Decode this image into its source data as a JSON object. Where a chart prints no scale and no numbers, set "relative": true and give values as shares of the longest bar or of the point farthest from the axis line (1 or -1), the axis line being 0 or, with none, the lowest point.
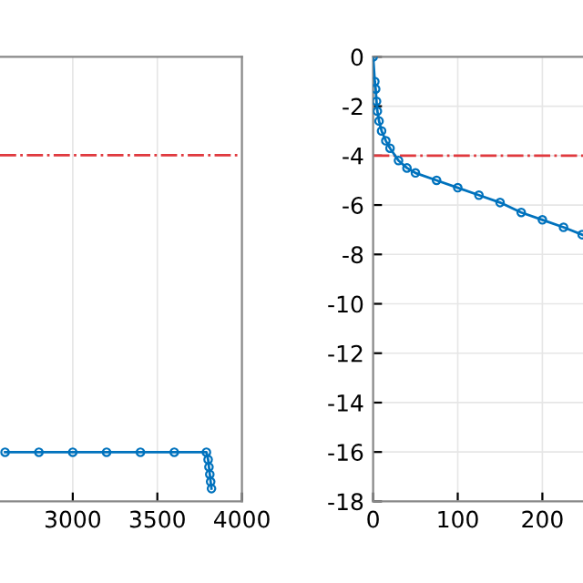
{
  "chart_data": [
    {
      "type": "line",
      "relative": true,
      "tick_labels": "x",
      "grid": "x",
      "marker": "circle",
      "xlim": [
        2570,
        4000
      ],
      "xticks": [
        3000,
        3500,
        4000
      ],
      "ref_lines": [
        {
          "axis": "y",
          "value": 7.04,
          "color": "#e0393e",
          "line_style": "dashdot"
        }
      ],
      "series": [
        {
          "color": "#0072bd",
          "x": [
            2600,
            2800,
            3000,
            3200,
            3400,
            3600,
            3790,
            3800,
            3805,
            3810,
            3815,
            3820
          ],
          "values": [
            1,
            1,
            1,
            1,
            1,
            1,
            1,
            0.85,
            0.7,
            0.55,
            0.4,
            0.26
          ]
        }
      ]
    },
    {
      "type": "line",
      "grid": true,
      "marker": "circle",
      "xlim": [
        0,
        248
      ],
      "xticks": [
        0,
        100,
        200
      ],
      "ylim": [
        -18,
        0
      ],
      "yticks": [
        -18,
        -16,
        -14,
        -12,
        -10,
        -8,
        -6,
        -4,
        -2,
        0
      ],
      "ref_lines": [
        {
          "axis": "y",
          "value": -4,
          "color": "#e0393e",
          "line_style": "dashdot"
        }
      ],
      "series": [
        {
          "color": "#0072bd",
          "x": [
            0,
            2,
            3,
            4,
            5,
            7,
            10,
            15,
            20,
            30,
            40,
            50,
            75,
            100,
            125,
            150,
            175,
            200,
            225,
            247
          ],
          "values": [
            0,
            -1,
            -1.3,
            -1.8,
            -2.2,
            -2.6,
            -3.0,
            -3.4,
            -3.7,
            -4.2,
            -4.5,
            -4.7,
            -5.0,
            -5.3,
            -5.6,
            -5.9,
            -6.3,
            -6.6,
            -6.9,
            -7.2
          ]
        }
      ]
    }
  ]
}
